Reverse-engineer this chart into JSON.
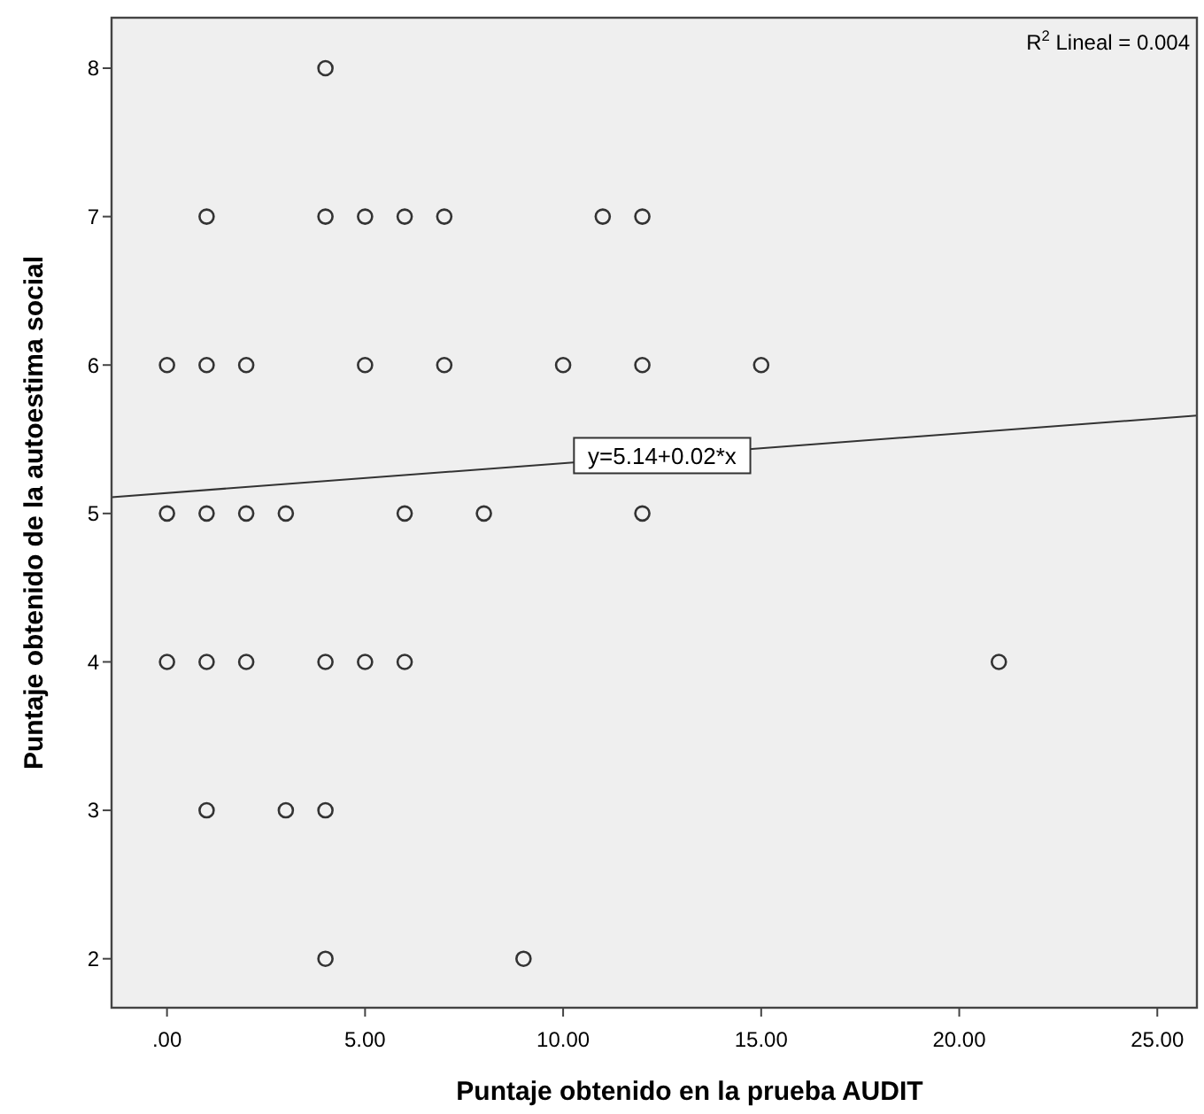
{
  "chart_data": {
    "type": "scatter",
    "xlabel": "Puntaje obtenido en la prueba AUDIT",
    "ylabel": "Puntaje obtenido de la autoestima social",
    "xlim": [
      -1.4,
      26
    ],
    "ylim": [
      1.67,
      8.34
    ],
    "xticks": [
      {
        "value": 0,
        "label": ".00"
      },
      {
        "value": 5,
        "label": "5.00"
      },
      {
        "value": 10,
        "label": "10.00"
      },
      {
        "value": 15,
        "label": "15.00"
      },
      {
        "value": 20,
        "label": "20.00"
      },
      {
        "value": 25,
        "label": "25.00"
      }
    ],
    "yticks": [
      2,
      3,
      4,
      5,
      6,
      7,
      8
    ],
    "grid": false,
    "series": [
      {
        "marker": "circle",
        "color": "#333333",
        "x": [
          4,
          1,
          4,
          5,
          6,
          7,
          11,
          12,
          0,
          1,
          2,
          5,
          7,
          10,
          12,
          15,
          0,
          1,
          2,
          3,
          6,
          8,
          12,
          0,
          1,
          2,
          4,
          5,
          6,
          21,
          1,
          3,
          4,
          4,
          9
        ],
        "values": [
          8,
          7,
          7,
          7,
          7,
          7,
          7,
          7,
          6,
          6,
          6,
          6,
          6,
          6,
          6,
          6,
          5,
          5,
          5,
          5,
          5,
          5,
          5,
          4,
          4,
          4,
          4,
          4,
          4,
          4,
          3,
          3,
          3,
          2,
          2
        ]
      },
      {
        "type": "line",
        "color": "#333333",
        "x": [
          -1.4,
          26
        ],
        "values": [
          5.11,
          5.66
        ]
      }
    ],
    "annotations": [
      {
        "text": "y=5.14+0.02*x",
        "x": 12.5,
        "y": 5.39
      },
      "R$^{2}$ Lineal = 0.004"
    ]
  }
}
